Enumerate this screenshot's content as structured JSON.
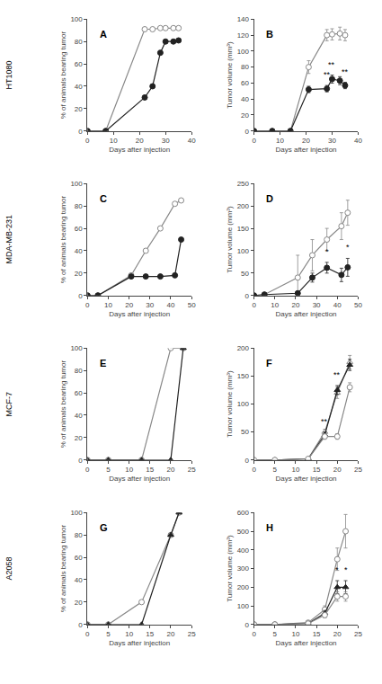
{
  "chart_data": [
    {
      "type": "line",
      "title": "A",
      "x": [
        0,
        7,
        22,
        25,
        28,
        30,
        33,
        35
      ],
      "xlabel": "Days after injection",
      "ylabel": "% of animals bearing tumor",
      "xlim": [
        0,
        40
      ],
      "ylim": [
        0,
        100
      ],
      "xticks": [
        0,
        10,
        20,
        30,
        40
      ],
      "yticks": [
        0,
        20,
        40,
        60,
        80,
        100
      ],
      "grid": false,
      "series": [
        {
          "color": "#888888",
          "marker": "open_circle",
          "values": [
            0,
            0,
            91,
            91,
            92,
            92,
            92,
            92
          ]
        },
        {
          "color": "#222222",
          "marker": "circle",
          "values": [
            0,
            0,
            30,
            40,
            70,
            80,
            80,
            81
          ]
        }
      ],
      "annotations": [
        {
          "text": "HT1080"
        }
      ]
    },
    {
      "type": "line",
      "title": "B",
      "x": [
        0,
        7,
        14,
        21,
        28,
        30,
        33,
        35
      ],
      "xlabel": "Days after injection",
      "ylabel": "Tumor volume (mm³)",
      "xlim": [
        0,
        40
      ],
      "ylim": [
        0,
        140
      ],
      "xticks": [
        0,
        10,
        20,
        30,
        40
      ],
      "yticks": [
        0,
        20,
        40,
        60,
        80,
        100,
        120,
        140
      ],
      "grid": false,
      "series": [
        {
          "color": "#888888",
          "marker": "open_circle",
          "values": [
            0,
            0,
            0,
            80,
            120,
            121,
            122,
            120
          ],
          "errors": [
            0,
            0,
            0,
            8,
            7,
            7,
            8,
            7
          ]
        },
        {
          "color": "#222222",
          "marker": "circle",
          "values": [
            0,
            0,
            0,
            52,
            53,
            65,
            63,
            57
          ],
          "errors": [
            0,
            0,
            0,
            4,
            4,
            5,
            5,
            4
          ]
        }
      ],
      "annotations": [
        {
          "x": 28,
          "text": "**"
        },
        {
          "x": 30,
          "text": "**"
        },
        {
          "x": 35,
          "text": "**"
        }
      ]
    },
    {
      "type": "line",
      "title": "C",
      "x": [
        0,
        5,
        21,
        28,
        35,
        42,
        45
      ],
      "xlabel": "Days after injection",
      "ylabel": "% of animals bearing tumor",
      "xlim": [
        0,
        50
      ],
      "ylim": [
        0,
        100
      ],
      "xticks": [
        0,
        10,
        20,
        30,
        40,
        50
      ],
      "yticks": [
        0,
        20,
        40,
        60,
        80,
        100
      ],
      "grid": false,
      "series": [
        {
          "color": "#888888",
          "marker": "open_circle",
          "values": [
            0,
            0,
            18,
            40,
            60,
            82,
            85
          ]
        },
        {
          "color": "#222222",
          "marker": "circle",
          "values": [
            0,
            0,
            17,
            17,
            17,
            18,
            50
          ]
        }
      ],
      "annotations": [
        {
          "text": "MDA-MB-231"
        }
      ]
    },
    {
      "type": "line",
      "title": "D",
      "x": [
        0,
        5,
        21,
        28,
        35,
        42,
        45
      ],
      "xlabel": "Days after injection",
      "ylabel": "Tumor volume (mm³)",
      "xlim": [
        0,
        50
      ],
      "ylim": [
        0,
        250
      ],
      "xticks": [
        0,
        10,
        20,
        30,
        40,
        50
      ],
      "yticks": [
        0,
        50,
        100,
        150,
        200,
        250
      ],
      "grid": false,
      "series": [
        {
          "color": "#888888",
          "marker": "open_circle",
          "values": [
            0,
            2,
            40,
            90,
            125,
            155,
            185
          ],
          "errors": [
            0,
            1,
            50,
            35,
            25,
            30,
            28
          ]
        },
        {
          "color": "#222222",
          "marker": "circle",
          "values": [
            0,
            2,
            5,
            40,
            62,
            46,
            63
          ],
          "errors": [
            0,
            1,
            3,
            10,
            12,
            15,
            20
          ]
        }
      ],
      "annotations": [
        {
          "x": 35,
          "text": "*"
        },
        {
          "x": 45,
          "text": "*"
        }
      ]
    },
    {
      "type": "line",
      "title": "E",
      "x": [
        0,
        5,
        13,
        20,
        23
      ],
      "xlabel": "Days after injection",
      "ylabel": "% of animals bearing tumor",
      "xlim": [
        0,
        25
      ],
      "ylim": [
        0,
        100
      ],
      "xticks": [
        0,
        5,
        10,
        15,
        20,
        25
      ],
      "yticks": [
        0,
        20,
        40,
        60,
        80,
        100
      ],
      "grid": false,
      "series": [
        {
          "color": "#888888",
          "marker": "open_circle",
          "values": [
            0,
            0,
            0,
            100,
            100
          ]
        },
        {
          "color": "#222222",
          "marker": "triangle",
          "values": [
            0,
            0,
            0,
            0,
            100
          ]
        }
      ],
      "annotations": [
        {
          "text": "MCF-7"
        }
      ]
    },
    {
      "type": "line",
      "title": "F",
      "x": [
        0,
        5,
        13,
        17,
        20,
        23
      ],
      "xlabel": "Days after injection",
      "ylabel": "Tumor volume (mm³)",
      "xlim": [
        0,
        25
      ],
      "ylim": [
        0,
        200
      ],
      "xticks": [
        0,
        5,
        10,
        15,
        20,
        25
      ],
      "yticks": [
        0,
        50,
        100,
        150,
        200
      ],
      "grid": false,
      "series": [
        {
          "color": "#888888",
          "marker": "open_triangle",
          "values": [
            0,
            0,
            2,
            50,
            120,
            175
          ],
          "errors": [
            0,
            0,
            1,
            5,
            10,
            12
          ]
        },
        {
          "color": "#222222",
          "marker": "triangle",
          "values": [
            0,
            0,
            2,
            45,
            125,
            170
          ],
          "errors": [
            0,
            0,
            1,
            5,
            8,
            10
          ]
        },
        {
          "color": "#888888",
          "marker": "open_circle",
          "values": [
            0,
            0,
            2,
            42,
            42,
            130
          ],
          "errors": [
            0,
            0,
            1,
            5,
            5,
            8
          ]
        }
      ],
      "annotations": [
        {
          "x": 17,
          "text": "**"
        },
        {
          "x": 20,
          "text": "**"
        }
      ]
    },
    {
      "type": "line",
      "title": "G",
      "x": [
        0,
        5,
        13,
        20,
        22
      ],
      "xlabel": "Days after injection",
      "ylabel": "% of animals bearing tumor",
      "xlim": [
        0,
        25
      ],
      "ylim": [
        0,
        100
      ],
      "xticks": [
        0,
        5,
        10,
        15,
        20,
        25
      ],
      "yticks": [
        0,
        20,
        40,
        60,
        80,
        100
      ],
      "grid": false,
      "series": [
        {
          "color": "#888888",
          "marker": "open_circle",
          "values": [
            0,
            0,
            20,
            80,
            100
          ]
        },
        {
          "color": "#222222",
          "marker": "triangle",
          "values": [
            0,
            0,
            0,
            80,
            100
          ]
        }
      ],
      "annotations": [
        {
          "text": "A2058"
        }
      ]
    },
    {
      "type": "line",
      "title": "H",
      "x": [
        0,
        5,
        13,
        17,
        20,
        22
      ],
      "xlabel": "Days after injection",
      "ylabel": "Tumor volume (mm³)",
      "xlim": [
        0,
        25
      ],
      "ylim": [
        0,
        600
      ],
      "xticks": [
        0,
        5,
        10,
        15,
        20,
        25
      ],
      "yticks": [
        0,
        100,
        200,
        300,
        400,
        500,
        600
      ],
      "grid": false,
      "series": [
        {
          "color": "#888888",
          "marker": "open_circle",
          "values": [
            0,
            0,
            10,
            80,
            350,
            500
          ],
          "errors": [
            0,
            0,
            5,
            20,
            60,
            90
          ]
        },
        {
          "color": "#222222",
          "marker": "triangle",
          "values": [
            0,
            0,
            5,
            60,
            200,
            200
          ],
          "errors": [
            0,
            0,
            3,
            15,
            35,
            35
          ]
        },
        {
          "color": "#888888",
          "marker": "open_circle",
          "values": [
            0,
            0,
            5,
            50,
            150,
            150
          ],
          "errors": [
            0,
            0,
            3,
            15,
            25,
            25
          ]
        }
      ],
      "annotations": [
        {
          "x": 20,
          "text": "*"
        },
        {
          "x": 22,
          "text": "*"
        }
      ]
    }
  ]
}
